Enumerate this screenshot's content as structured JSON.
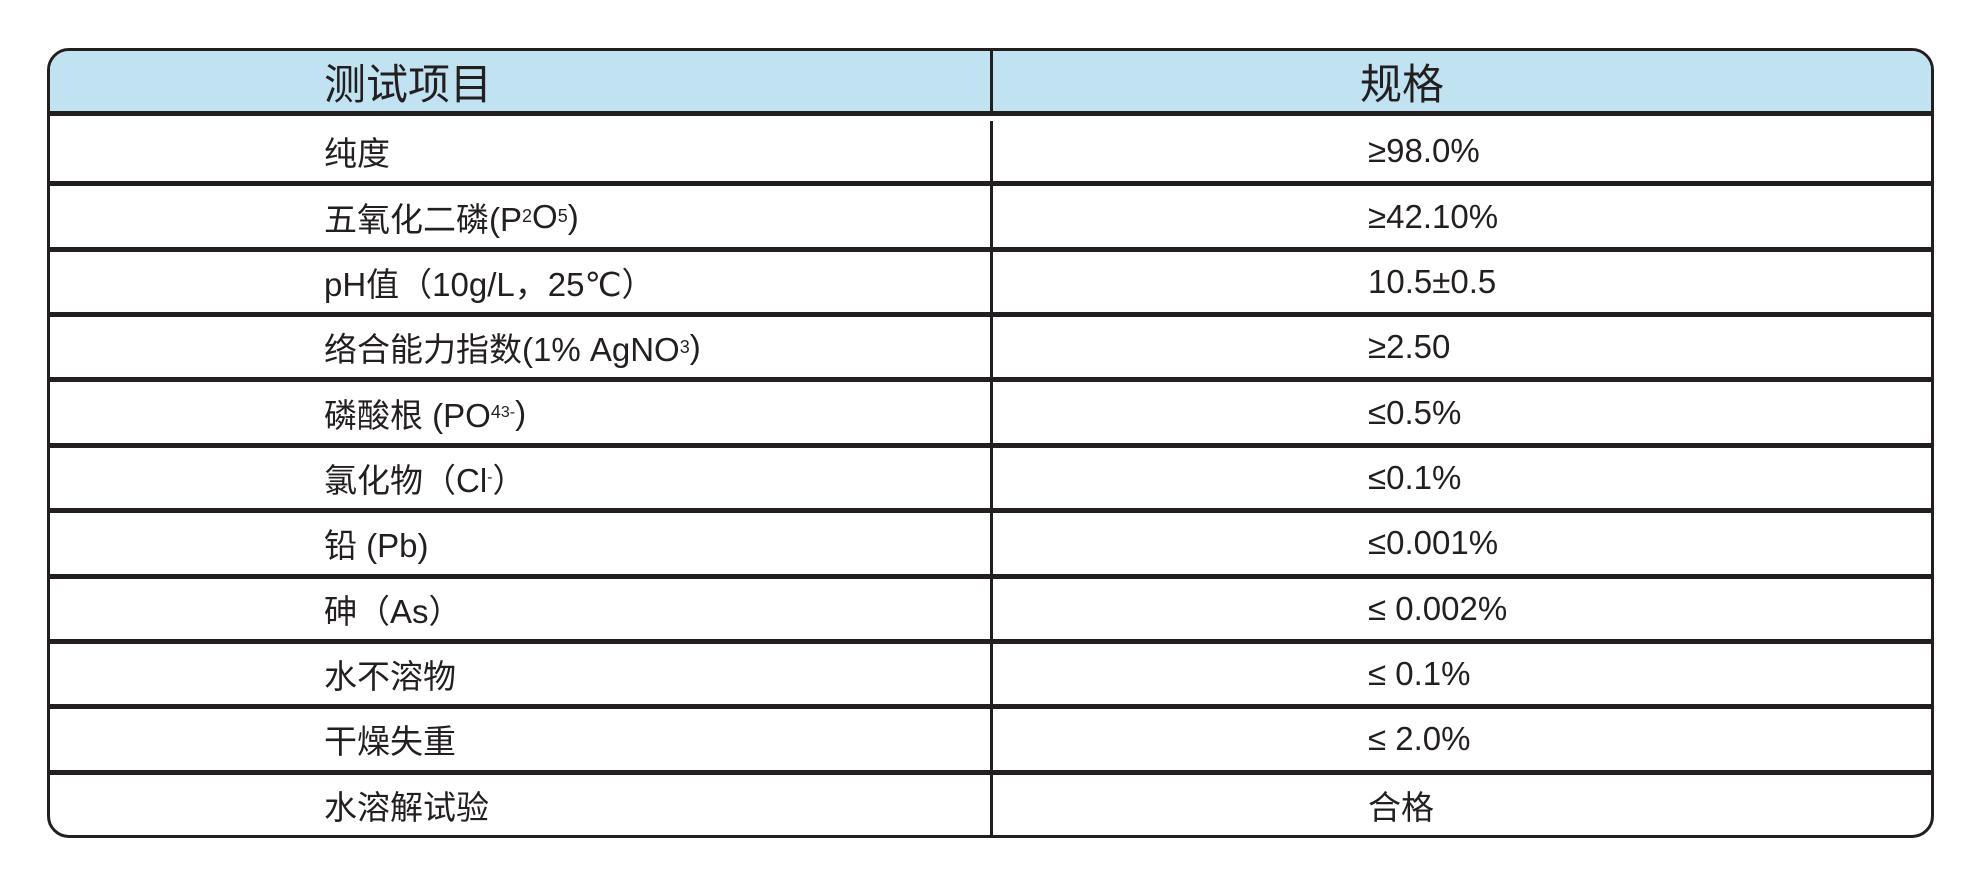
{
  "header": {
    "col_item": "测试项目",
    "col_spec": "规格"
  },
  "header_color": "#c0e2f1",
  "rows": [
    {
      "item": [
        {
          "text": "纯度"
        }
      ],
      "spec": "≥98.0%"
    },
    {
      "item": [
        {
          "text": "五氧化二磷(P"
        },
        {
          "text": "2",
          "style": "sub"
        },
        {
          "text": "O"
        },
        {
          "text": "5",
          "style": "sub"
        },
        {
          "text": ")"
        }
      ],
      "spec": "≥42.10%"
    },
    {
      "item": [
        {
          "text": "pH值（10g/L，25℃）"
        }
      ],
      "spec": "10.5±0.5"
    },
    {
      "item": [
        {
          "text": "络合能力指数(1% AgNO"
        },
        {
          "text": "3",
          "style": "sub"
        },
        {
          "text": ")"
        }
      ],
      "spec": "≥2.50"
    },
    {
      "item": [
        {
          "text": "磷酸根 (PO"
        },
        {
          "text": "4",
          "style": "sub"
        },
        {
          "text": "3-",
          "style": "sup"
        },
        {
          "text": ")"
        }
      ],
      "spec": "≤0.5%"
    },
    {
      "item": [
        {
          "text": "氯化物（Cl"
        },
        {
          "text": "-",
          "style": "sup"
        },
        {
          "text": "）"
        }
      ],
      "spec": "≤0.1%"
    },
    {
      "item": [
        {
          "text": "铅 (Pb)"
        }
      ],
      "spec": "≤0.001%"
    },
    {
      "item": [
        {
          "text": "砷（As）"
        }
      ],
      "spec": "≤ 0.002%"
    },
    {
      "item": [
        {
          "text": "水不溶物"
        }
      ],
      "spec": "≤ 0.1%"
    },
    {
      "item": [
        {
          "text": "干燥失重"
        }
      ],
      "spec": "≤ 2.0%"
    },
    {
      "item": [
        {
          "text": "水溶解试验"
        }
      ],
      "spec": "合格"
    }
  ]
}
